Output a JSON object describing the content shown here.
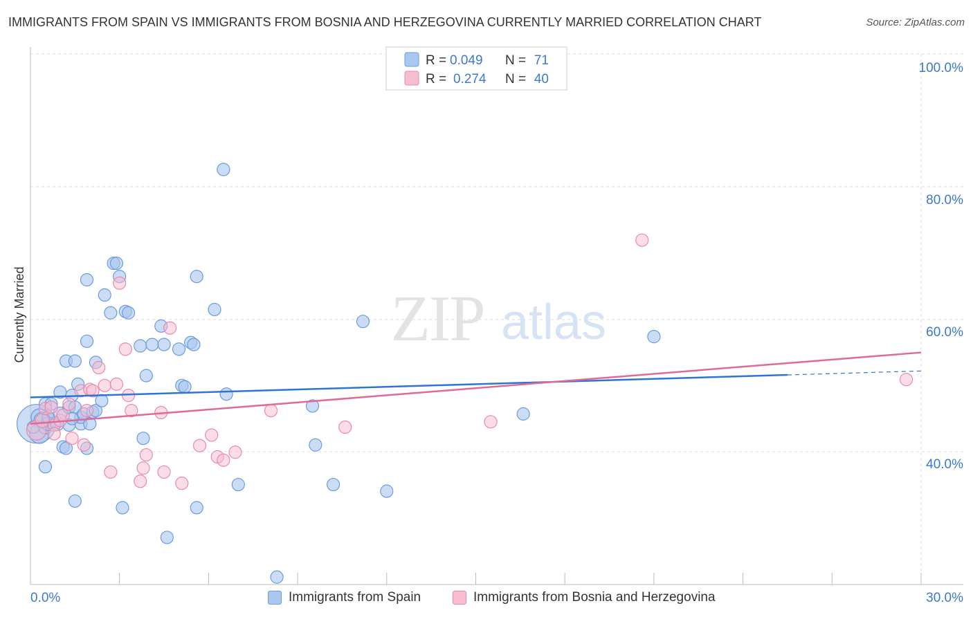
{
  "title": "IMMIGRANTS FROM SPAIN VS IMMIGRANTS FROM BOSNIA AND HERZEGOVINA CURRENTLY MARRIED CORRELATION CHART",
  "source": "Source: ZipAtlas.com",
  "watermark": {
    "zip": "ZIP",
    "atlas": "atlas"
  },
  "colors": {
    "spain_fill": "#a9c7ef",
    "spain_stroke": "#6a9be0",
    "spain_line": "#2e74d2",
    "bosnia_fill": "#f6bcd0",
    "bosnia_stroke": "#e98aab",
    "bosnia_line": "#e06a97",
    "grid": "#dddddd",
    "axis_text": "#3b78d0"
  },
  "chart_data": {
    "type": "scatter",
    "title": "IMMIGRANTS FROM SPAIN VS IMMIGRANTS FROM BOSNIA AND HERZEGOVINA CURRENTLY MARRIED CORRELATION CHART",
    "xlabel": "",
    "ylabel": "Currently Married",
    "xlim": [
      0,
      30
    ],
    "ylim": [
      22,
      102
    ],
    "x_tick_labels": [
      "0.0%",
      "30.0%"
    ],
    "y_ticks": [
      40,
      60,
      80,
      100
    ],
    "y_tick_labels": [
      "40.0%",
      "60.0%",
      "80.0%",
      "100.0%"
    ],
    "grid": true,
    "legend_position": "bottom",
    "stats": [
      {
        "r_label": "R =",
        "r": "0.049",
        "n_label": "N =",
        "n": "71"
      },
      {
        "r_label": "R =",
        "r": "0.274",
        "n_label": "N =",
        "n": "40"
      }
    ],
    "series": [
      {
        "name": "Immigrants from Spain",
        "trend": {
          "x0": 0,
          "y0": 50.0,
          "x1": 25.5,
          "y1": 53.4,
          "dashed_to_x": 30,
          "dashed_to_y": 54.0
        },
        "points": [
          [
            0.2,
            46.0,
            28
          ],
          [
            0.3,
            44.5,
            14
          ],
          [
            0.3,
            47.0,
            12
          ],
          [
            0.4,
            46.5,
            12
          ],
          [
            0.5,
            45.5,
            10
          ],
          [
            0.6,
            46.0,
            10
          ],
          [
            0.8,
            46.0,
            10
          ],
          [
            0.9,
            46.0,
            10
          ],
          [
            1.0,
            47.5,
            10
          ],
          [
            0.5,
            49.0,
            9
          ],
          [
            0.5,
            39.5,
            9
          ],
          [
            0.7,
            49.0,
            9
          ],
          [
            1.0,
            50.8,
            9
          ],
          [
            1.1,
            42.5,
            9
          ],
          [
            1.2,
            42.3,
            9
          ],
          [
            1.2,
            55.5,
            9
          ],
          [
            1.3,
            48.5,
            9
          ],
          [
            1.4,
            50.3,
            9
          ],
          [
            1.5,
            55.5,
            9
          ],
          [
            1.5,
            48.5,
            9
          ],
          [
            1.5,
            34.3,
            9
          ],
          [
            1.6,
            52.0,
            9
          ],
          [
            1.7,
            46.0,
            9
          ],
          [
            1.7,
            47.0,
            9
          ],
          [
            1.8,
            47.5,
            9
          ],
          [
            1.9,
            58.5,
            9
          ],
          [
            1.9,
            42.3,
            9
          ],
          [
            1.9,
            67.8,
            9
          ],
          [
            2.0,
            46.0,
            9
          ],
          [
            2.1,
            47.8,
            9
          ],
          [
            2.2,
            55.3,
            9
          ],
          [
            2.2,
            48.0,
            9
          ],
          [
            2.4,
            49.5,
            9
          ],
          [
            2.5,
            65.5,
            9
          ],
          [
            2.7,
            62.8,
            9
          ],
          [
            2.8,
            70.3,
            9
          ],
          [
            2.9,
            70.3,
            9
          ],
          [
            3.0,
            68.3,
            9
          ],
          [
            3.1,
            33.3,
            9
          ],
          [
            3.2,
            63.0,
            9
          ],
          [
            3.3,
            62.8,
            9
          ],
          [
            3.7,
            57.8,
            9
          ],
          [
            3.8,
            43.8,
            9
          ],
          [
            3.9,
            53.3,
            9
          ],
          [
            4.1,
            58.0,
            9
          ],
          [
            4.4,
            60.8,
            9
          ],
          [
            4.5,
            58.0,
            9
          ],
          [
            4.6,
            28.8,
            9
          ],
          [
            5.0,
            57.3,
            9
          ],
          [
            5.1,
            51.8,
            9
          ],
          [
            5.2,
            51.6,
            9
          ],
          [
            5.4,
            58.3,
            9
          ],
          [
            5.5,
            58.0,
            9
          ],
          [
            5.6,
            68.3,
            9
          ],
          [
            5.6,
            33.3,
            9
          ],
          [
            6.2,
            63.3,
            9
          ],
          [
            6.5,
            84.5,
            9
          ],
          [
            6.6,
            50.5,
            9
          ],
          [
            7.0,
            36.8,
            9
          ],
          [
            8.3,
            22.8,
            9
          ],
          [
            9.5,
            48.7,
            9
          ],
          [
            9.6,
            42.8,
            9
          ],
          [
            10.2,
            36.8,
            9
          ],
          [
            11.2,
            61.5,
            9
          ],
          [
            12.0,
            35.8,
            9
          ],
          [
            16.6,
            47.5,
            9
          ],
          [
            21.0,
            59.2,
            9
          ],
          [
            0.1,
            45.5,
            9
          ],
          [
            0.6,
            47.0,
            9
          ],
          [
            1.3,
            45.8,
            9
          ],
          [
            1.4,
            46.8,
            9
          ]
        ]
      },
      {
        "name": "Immigrants from Bosnia and Herzegovina",
        "trend": {
          "x0": 0,
          "y0": 46.0,
          "x1": 30,
          "y1": 56.8
        },
        "points": [
          [
            0.2,
            45.0,
            14
          ],
          [
            0.4,
            46.5,
            10
          ],
          [
            0.5,
            48.3,
            9
          ],
          [
            0.7,
            48.5,
            9
          ],
          [
            0.8,
            45.8,
            9
          ],
          [
            0.8,
            44.5,
            9
          ],
          [
            1.0,
            46.5,
            9
          ],
          [
            1.1,
            47.3,
            9
          ],
          [
            1.3,
            49.0,
            9
          ],
          [
            1.4,
            43.8,
            9
          ],
          [
            1.7,
            51.0,
            9
          ],
          [
            1.8,
            42.8,
            9
          ],
          [
            1.9,
            48.0,
            9
          ],
          [
            2.0,
            51.2,
            9
          ],
          [
            2.1,
            51.0,
            9
          ],
          [
            2.3,
            54.5,
            9
          ],
          [
            2.5,
            51.8,
            9
          ],
          [
            2.7,
            38.7,
            9
          ],
          [
            2.9,
            52.0,
            9
          ],
          [
            3.0,
            67.3,
            9
          ],
          [
            3.2,
            57.3,
            9
          ],
          [
            3.3,
            50.3,
            9
          ],
          [
            3.4,
            48.0,
            9
          ],
          [
            3.7,
            37.3,
            9
          ],
          [
            3.8,
            39.3,
            9
          ],
          [
            3.9,
            41.3,
            9
          ],
          [
            4.4,
            47.7,
            9
          ],
          [
            4.5,
            38.7,
            9
          ],
          [
            4.7,
            60.5,
            9
          ],
          [
            5.1,
            37.0,
            9
          ],
          [
            5.7,
            42.7,
            9
          ],
          [
            6.1,
            44.3,
            9
          ],
          [
            6.3,
            41.0,
            9
          ],
          [
            6.5,
            40.5,
            9
          ],
          [
            6.9,
            41.7,
            9
          ],
          [
            8.1,
            48.0,
            9
          ],
          [
            10.6,
            45.5,
            9
          ],
          [
            15.5,
            46.3,
            9
          ],
          [
            20.6,
            73.8,
            9
          ],
          [
            29.5,
            52.7,
            9
          ]
        ]
      }
    ]
  }
}
